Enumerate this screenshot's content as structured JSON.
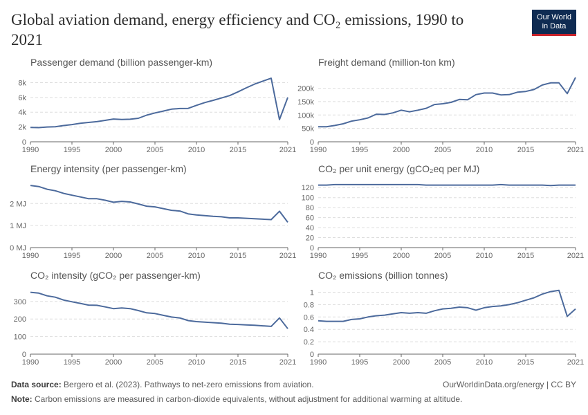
{
  "header": {
    "title": "Global aviation demand, energy efficiency and CO₂ emissions, 1990 to 2021",
    "logo_line1": "Our World",
    "logo_line2": "in Data"
  },
  "footer": {
    "source_label": "Data source:",
    "source_text": "Bergero et al. (2023). Pathways to net-zero emissions from aviation.",
    "url_text": "OurWorldinData.org/energy | CC BY",
    "note_label": "Note:",
    "note_text": "Carbon emissions are measured in carbon-dioxide equivalents, without adjustment for additional warming at altitude."
  },
  "colors": {
    "line": "#4c6a9c",
    "grid": "#dddddd",
    "axis": "#666666",
    "tick_text": "#666666",
    "subtitle_text": "#555555"
  },
  "chart_data": [
    {
      "type": "line",
      "title": "Passenger demand (billion passenger-km)",
      "x": [
        1990,
        1991,
        1992,
        1993,
        1994,
        1995,
        1996,
        1997,
        1998,
        1999,
        2000,
        2001,
        2002,
        2003,
        2004,
        2005,
        2006,
        2007,
        2008,
        2009,
        2010,
        2011,
        2012,
        2013,
        2014,
        2015,
        2016,
        2017,
        2018,
        2019,
        2020,
        2021
      ],
      "series": [
        {
          "values": [
            1950,
            1920,
            2000,
            2040,
            2200,
            2330,
            2500,
            2620,
            2720,
            2900,
            3080,
            3020,
            3050,
            3180,
            3600,
            3900,
            4150,
            4420,
            4500,
            4520,
            4930,
            5300,
            5600,
            5920,
            6250,
            6750,
            7300,
            7800,
            8200,
            8600,
            3000,
            6000
          ]
        }
      ],
      "ylim": [
        0,
        8700
      ],
      "yticks": [
        0,
        2000,
        4000,
        6000,
        8000
      ],
      "ytick_labels": [
        "0",
        "2k",
        "4k",
        "6k",
        "8k"
      ],
      "xticks": [
        1990,
        1995,
        2000,
        2005,
        2010,
        2015,
        2021
      ],
      "xtick_labels": [
        "1990",
        "1995",
        "2000",
        "2005",
        "2010",
        "2015",
        "2021"
      ]
    },
    {
      "type": "line",
      "title": "Freight demand (million-ton km)",
      "x": [
        1990,
        1991,
        1992,
        1993,
        1994,
        1995,
        1996,
        1997,
        1998,
        1999,
        2000,
        2001,
        2002,
        2003,
        2004,
        2005,
        2006,
        2007,
        2008,
        2009,
        2010,
        2011,
        2012,
        2013,
        2014,
        2015,
        2016,
        2017,
        2018,
        2019,
        2020,
        2021
      ],
      "series": [
        {
          "values": [
            56000,
            56000,
            61000,
            67000,
            77000,
            82000,
            89000,
            103000,
            102000,
            108000,
            118000,
            112000,
            118000,
            125000,
            139000,
            142000,
            147000,
            158000,
            157000,
            176000,
            182000,
            182000,
            175000,
            176000,
            185000,
            188000,
            195000,
            212000,
            220000,
            220000,
            180000,
            240000
          ]
        }
      ],
      "ylim": [
        0,
        240000
      ],
      "yticks": [
        0,
        50000,
        100000,
        150000,
        200000
      ],
      "ytick_labels": [
        "0",
        "50k",
        "100k",
        "150k",
        "200k"
      ],
      "xticks": [
        1990,
        1995,
        2000,
        2005,
        2010,
        2015,
        2021
      ],
      "xtick_labels": [
        "1990",
        "1995",
        "2000",
        "2005",
        "2010",
        "2015",
        "2021"
      ]
    },
    {
      "type": "line",
      "title": "Energy intensity (per passenger-km)",
      "x": [
        1990,
        1991,
        1992,
        1993,
        1994,
        1995,
        1996,
        1997,
        1998,
        1999,
        2000,
        2001,
        2002,
        2003,
        2004,
        2005,
        2006,
        2007,
        2008,
        2009,
        2010,
        2011,
        2012,
        2013,
        2014,
        2015,
        2016,
        2017,
        2018,
        2019,
        2020,
        2021
      ],
      "series": [
        {
          "values": [
            2.82,
            2.77,
            2.65,
            2.58,
            2.46,
            2.38,
            2.3,
            2.22,
            2.22,
            2.15,
            2.06,
            2.1,
            2.07,
            1.98,
            1.88,
            1.85,
            1.77,
            1.69,
            1.66,
            1.53,
            1.48,
            1.45,
            1.42,
            1.4,
            1.35,
            1.35,
            1.33,
            1.31,
            1.29,
            1.27,
            1.65,
            1.15
          ]
        }
      ],
      "ylim": [
        0,
        2.95
      ],
      "yticks": [
        0,
        1,
        2
      ],
      "ytick_labels": [
        "0 MJ",
        "1 MJ",
        "2 MJ"
      ],
      "xticks": [
        1990,
        1995,
        2000,
        2005,
        2010,
        2015,
        2021
      ],
      "xtick_labels": [
        "1990",
        "1995",
        "2000",
        "2005",
        "2010",
        "2015",
        "2021"
      ]
    },
    {
      "type": "line",
      "title": "CO₂ per unit energy (gCO₂eq per MJ)",
      "x": [
        1990,
        1991,
        1992,
        1993,
        1994,
        1995,
        1996,
        1997,
        1998,
        1999,
        2000,
        2001,
        2002,
        2003,
        2004,
        2005,
        2006,
        2007,
        2008,
        2009,
        2010,
        2011,
        2012,
        2013,
        2014,
        2015,
        2016,
        2017,
        2018,
        2019,
        2020,
        2021
      ],
      "series": [
        {
          "values": [
            125,
            125,
            126,
            126,
            126,
            126,
            126,
            126,
            126,
            126,
            126,
            126,
            126,
            125,
            125,
            125,
            125,
            125,
            125,
            125,
            125,
            125,
            126,
            125,
            125,
            125,
            125,
            125,
            124,
            125,
            125,
            125
          ]
        }
      ],
      "ylim": [
        0,
        130
      ],
      "yticks": [
        0,
        20,
        40,
        60,
        80,
        100,
        120
      ],
      "ytick_labels": [
        "0",
        "20",
        "40",
        "60",
        "80",
        "100",
        "120"
      ],
      "xticks": [
        1990,
        1995,
        2000,
        2005,
        2010,
        2015,
        2021
      ],
      "xtick_labels": [
        "1990",
        "1995",
        "2000",
        "2005",
        "2010",
        "2015",
        "2021"
      ]
    },
    {
      "type": "line",
      "title": "CO₂ intensity (gCO₂ per passenger-km)",
      "x": [
        1990,
        1991,
        1992,
        1993,
        1994,
        1995,
        1996,
        1997,
        1998,
        1999,
        2000,
        2001,
        2002,
        2003,
        2004,
        2005,
        2006,
        2007,
        2008,
        2009,
        2010,
        2011,
        2012,
        2013,
        2014,
        2015,
        2016,
        2017,
        2018,
        2019,
        2020,
        2021
      ],
      "series": [
        {
          "values": [
            352,
            347,
            332,
            324,
            308,
            298,
            289,
            279,
            278,
            269,
            259,
            263,
            259,
            248,
            235,
            231,
            221,
            211,
            206,
            191,
            185,
            182,
            179,
            176,
            170,
            169,
            166,
            164,
            161,
            158,
            206,
            145
          ]
        }
      ],
      "ylim": [
        0,
        370
      ],
      "yticks": [
        0,
        100,
        200,
        300
      ],
      "ytick_labels": [
        "0",
        "100",
        "200",
        "300"
      ],
      "xticks": [
        1990,
        1995,
        2000,
        2005,
        2010,
        2015,
        2021
      ],
      "xtick_labels": [
        "1990",
        "1995",
        "2000",
        "2005",
        "2010",
        "2015",
        "2021"
      ]
    },
    {
      "type": "line",
      "title": "CO₂ emissions (billion tonnes)",
      "x": [
        1990,
        1991,
        1992,
        1993,
        1994,
        1995,
        1996,
        1997,
        1998,
        1999,
        2000,
        2001,
        2002,
        2003,
        2004,
        2005,
        2006,
        2007,
        2008,
        2009,
        2010,
        2011,
        2012,
        2013,
        2014,
        2015,
        2016,
        2017,
        2018,
        2019,
        2020,
        2021
      ],
      "series": [
        {
          "values": [
            0.54,
            0.53,
            0.53,
            0.53,
            0.56,
            0.57,
            0.6,
            0.62,
            0.63,
            0.65,
            0.67,
            0.66,
            0.67,
            0.66,
            0.7,
            0.73,
            0.74,
            0.76,
            0.75,
            0.71,
            0.75,
            0.77,
            0.78,
            0.8,
            0.83,
            0.87,
            0.91,
            0.97,
            1.01,
            1.03,
            0.61,
            0.73
          ]
        }
      ],
      "ylim": [
        0,
        1.05
      ],
      "yticks": [
        0,
        0.2,
        0.4,
        0.6,
        0.8,
        1
      ],
      "ytick_labels": [
        "0",
        "0.2",
        "0.4",
        "0.6",
        "0.8",
        "1"
      ],
      "xticks": [
        1990,
        1995,
        2000,
        2005,
        2010,
        2015,
        2021
      ],
      "xtick_labels": [
        "1990",
        "1995",
        "2000",
        "2005",
        "2010",
        "2015",
        "2021"
      ]
    }
  ]
}
